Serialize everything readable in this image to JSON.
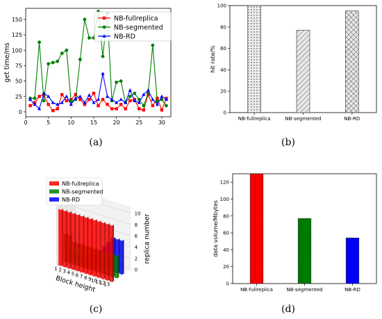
{
  "captions": [
    "(a)",
    "(b)",
    "(c)",
    "(d)"
  ],
  "chart_data": [
    {
      "panel": "(a)",
      "type": "line",
      "xlabel": "",
      "ylabel": "get time/ms",
      "xlim": [
        0,
        32
      ],
      "ylim": [
        -8,
        168
      ],
      "xticks": [
        "0",
        "5",
        "10",
        "15",
        "20",
        "25",
        "30"
      ],
      "yticks": [
        "0",
        "25",
        "50",
        "75",
        "100",
        "125",
        "150"
      ],
      "legend_position": "top-right",
      "x": [
        1,
        2,
        3,
        4,
        5,
        6,
        7,
        8,
        9,
        10,
        11,
        12,
        13,
        14,
        15,
        16,
        17,
        18,
        19,
        20,
        21,
        22,
        23,
        24,
        25,
        26,
        27,
        28,
        29,
        30,
        31
      ],
      "series": [
        {
          "name": "NB-fullreplica",
          "color": "#ff0000",
          "marker": "square",
          "values": [
            10,
            15,
            25,
            28,
            12,
            2,
            5,
            28,
            18,
            20,
            28,
            20,
            12,
            20,
            30,
            10,
            20,
            12,
            5,
            5,
            12,
            5,
            18,
            20,
            5,
            3,
            28,
            10,
            22,
            3,
            22
          ]
        },
        {
          "name": "NB-segmented",
          "color": "#008000",
          "marker": "circle",
          "values": [
            22,
            22,
            113,
            18,
            78,
            80,
            82,
            95,
            100,
            17,
            20,
            85,
            150,
            120,
            120,
            163,
            90,
            160,
            18,
            48,
            50,
            15,
            25,
            30,
            20,
            10,
            30,
            108,
            17,
            20,
            10
          ]
        },
        {
          "name": "NB-RD",
          "color": "#0000ff",
          "marker": "triangle",
          "values": [
            20,
            12,
            5,
            30,
            25,
            15,
            12,
            15,
            25,
            12,
            22,
            25,
            15,
            27,
            15,
            20,
            62,
            25,
            20,
            15,
            20,
            15,
            35,
            18,
            15,
            28,
            35,
            20,
            12,
            25,
            20
          ]
        }
      ]
    },
    {
      "panel": "(b)",
      "type": "bar",
      "xlabel": "",
      "ylabel": "hit rate/%",
      "ylim": [
        0,
        100
      ],
      "yticks": [
        "0",
        "20",
        "40",
        "60",
        "80",
        "100"
      ],
      "categories": [
        "NB-fullreplica",
        "NB-segmented",
        "NB-RD"
      ],
      "values": [
        100,
        77,
        95
      ],
      "hatches": [
        "dots",
        "diagonal",
        "crosshatch"
      ]
    },
    {
      "panel": "(c)",
      "type": "bar3d",
      "xlabel": "Block height",
      "zlabel": "replica number",
      "xticks": [
        "1",
        "2",
        "3",
        "4",
        "5",
        "6",
        "7",
        "8",
        "9",
        "10",
        "11",
        "12",
        "13"
      ],
      "zticks": [
        "0",
        "2",
        "4",
        "6",
        "8",
        "10"
      ],
      "legend_position": "top-left",
      "series": [
        {
          "name": "NB-fullreplica",
          "color": "#ff0000",
          "values": [
            10,
            10,
            10,
            10,
            10,
            10,
            10,
            10,
            10,
            10,
            10,
            10,
            10
          ]
        },
        {
          "name": "NB-segmented",
          "color": "#008000",
          "values": [
            5,
            5,
            4,
            4,
            4,
            4,
            4,
            4,
            4,
            4,
            4,
            4,
            4
          ]
        },
        {
          "name": "NB-RD",
          "color": "#0000ff",
          "values": [
            1,
            1,
            1,
            1,
            1,
            2,
            2,
            3,
            4,
            5,
            6,
            6,
            6
          ]
        }
      ]
    },
    {
      "panel": "(d)",
      "type": "bar",
      "xlabel": "",
      "ylabel": "data volume/Mbytes",
      "ylim": [
        0,
        130
      ],
      "yticks": [
        "0",
        "20",
        "40",
        "60",
        "80",
        "100",
        "120"
      ],
      "categories": [
        "NB-fullreplica",
        "NB-segmented",
        "NB-RD"
      ],
      "values": [
        130,
        77,
        54
      ],
      "colors": [
        "#ff0000",
        "#008000",
        "#0000ff"
      ]
    }
  ]
}
